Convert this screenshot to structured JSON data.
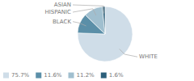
{
  "chart_data": {
    "type": "pie",
    "categories": [
      "WHITE",
      "BLACK",
      "HISPANIC",
      "ASIAN"
    ],
    "values": [
      75.7,
      11.6,
      11.2,
      1.6
    ],
    "value_labels": [
      "75.7%",
      "11.6%",
      "11.2%",
      "1.6%"
    ],
    "colors": [
      "#cfdde8",
      "#5b8fa8",
      "#a0bfcf",
      "#2c5f7a"
    ],
    "legend": "bottom"
  }
}
